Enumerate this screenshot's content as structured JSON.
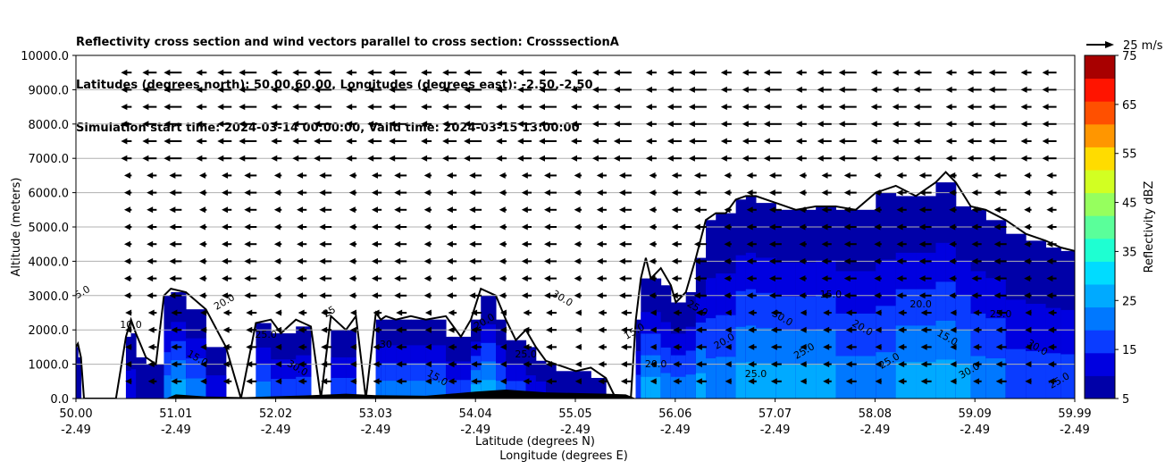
{
  "chart_data": {
    "type": "heatmap",
    "title_lines": [
      "Reflectivity cross section and wind vectors parallel to cross section: CrosssectionA",
      "Latitudes (degrees north): 50.00,60.00, Longitudes (degrees east): -2.50,-2.50",
      "Simulation start time: 2024-03-14 00:00:00, Valid time: 2024-03-15 13:00:00"
    ],
    "ylabel": "Altitude (meters)",
    "xlabel_lat": "Latitude (degrees N)",
    "xlabel_lon": "Longitude (degrees E)",
    "xlim": [
      50.0,
      59.99
    ],
    "ylim": [
      0,
      10000
    ],
    "x_ticks_lat": [
      "50.00",
      "51.01",
      "52.02",
      "53.03",
      "54.04",
      "55.05",
      "56.06",
      "57.07",
      "58.08",
      "59.09",
      "59.99"
    ],
    "x_ticks_lon": [
      "-2.49",
      "-2.49",
      "-2.49",
      "-2.49",
      "-2.49",
      "-2.49",
      "-2.49",
      "-2.49",
      "-2.49",
      "-2.49",
      "-2.49"
    ],
    "y_ticks": [
      "0.0",
      "1000.0",
      "2000.0",
      "3000.0",
      "4000.0",
      "5000.0",
      "6000.0",
      "7000.0",
      "8000.0",
      "9000.0",
      "10000.0"
    ],
    "grid": true,
    "colorbar": {
      "label": "Reflectivity dBZ",
      "min": 5,
      "max": 75,
      "step": 5,
      "ticks": [
        "5",
        "15",
        "25",
        "35",
        "45",
        "55",
        "65",
        "75"
      ],
      "colors": [
        "#0000a8",
        "#0000e0",
        "#0a3cff",
        "#0078ff",
        "#00aaff",
        "#00dcff",
        "#1effd2",
        "#5aff9a",
        "#96ff5e",
        "#d2ff22",
        "#ffdc00",
        "#ff9600",
        "#ff5000",
        "#ff1400",
        "#a80000"
      ]
    },
    "wind_reference": {
      "speed": 25,
      "label": "25 m/s"
    },
    "wind_rows_m": [
      500,
      1000,
      1500,
      2000,
      2500,
      3000,
      3500,
      4000,
      4500,
      5000,
      5500,
      6000,
      6500,
      7000,
      7500,
      8000,
      8500,
      9000,
      9500
    ],
    "reflectivity_profile": {
      "latitude": [
        50.0,
        50.02,
        50.05,
        50.08,
        50.4,
        50.5,
        50.55,
        50.6,
        50.7,
        50.8,
        50.88,
        50.95,
        51.1,
        51.3,
        51.5,
        51.65,
        51.8,
        51.95,
        52.05,
        52.2,
        52.35,
        52.45,
        52.55,
        52.7,
        52.8,
        52.9,
        53.0,
        53.05,
        53.1,
        53.2,
        53.35,
        53.5,
        53.7,
        53.85,
        53.95,
        54.05,
        54.2,
        54.3,
        54.4,
        54.5,
        54.6,
        54.7,
        54.8,
        55.0,
        55.15,
        55.3,
        55.4,
        55.55,
        55.6,
        55.65,
        55.7,
        55.75,
        55.85,
        55.95,
        56.0,
        56.1,
        56.2,
        56.3,
        56.4,
        56.5,
        56.6,
        56.7,
        56.8,
        57.0,
        57.2,
        57.4,
        57.6,
        57.8,
        58.0,
        58.2,
        58.4,
        58.6,
        58.7,
        58.8,
        58.95,
        59.1,
        59.3,
        59.5,
        59.7,
        59.85,
        59.99
      ],
      "echo_top_m": [
        1500,
        1600,
        1200,
        0,
        0,
        1800,
        2300,
        1900,
        1200,
        1000,
        3000,
        3200,
        3100,
        2600,
        1500,
        0,
        2200,
        2300,
        1900,
        2300,
        2100,
        0,
        2400,
        2000,
        2400,
        0,
        2500,
        2300,
        2400,
        2300,
        2400,
        2300,
        2400,
        1800,
        2300,
        3200,
        3000,
        2300,
        1700,
        2000,
        1500,
        1100,
        1000,
        800,
        900,
        600,
        0,
        0,
        2300,
        3500,
        4100,
        3500,
        3800,
        3300,
        2800,
        3100,
        4100,
        5200,
        5400,
        5400,
        5800,
        5900,
        5900,
        5700,
        5500,
        5600,
        5600,
        5500,
        6000,
        6200,
        5900,
        6300,
        6600,
        6300,
        5600,
        5500,
        5200,
        4800,
        4600,
        4400,
        4300
      ],
      "peak_dbz": [
        10,
        10,
        10,
        5,
        5,
        15,
        20,
        15,
        10,
        10,
        25,
        30,
        30,
        25,
        15,
        5,
        25,
        25,
        20,
        25,
        20,
        5,
        25,
        20,
        25,
        5,
        30,
        25,
        25,
        25,
        25,
        25,
        25,
        20,
        30,
        35,
        30,
        25,
        20,
        20,
        15,
        15,
        10,
        10,
        10,
        10,
        5,
        5,
        20,
        30,
        35,
        30,
        30,
        25,
        25,
        25,
        30,
        30,
        25,
        25,
        30,
        30,
        30,
        30,
        30,
        30,
        30,
        25,
        25,
        30,
        30,
        30,
        30,
        30,
        30,
        25,
        25,
        20,
        20,
        20,
        20
      ]
    },
    "contour_labels": [
      "5.0",
      "10.0",
      "15.0",
      "20.0",
      "25.0",
      "30.0",
      "25",
      "30",
      "15.0",
      "20.0",
      "25.0",
      "30.0",
      "15.0",
      "20.0",
      "25.0",
      "20.0",
      "25.0",
      "30.0",
      "25.0",
      "15.0",
      "20.0",
      "25.0",
      "20.0",
      "15.0",
      "30.0",
      "25.0",
      "30.0",
      "25.0",
      "20.0",
      "30.0",
      "15.0",
      "5.0"
    ]
  }
}
